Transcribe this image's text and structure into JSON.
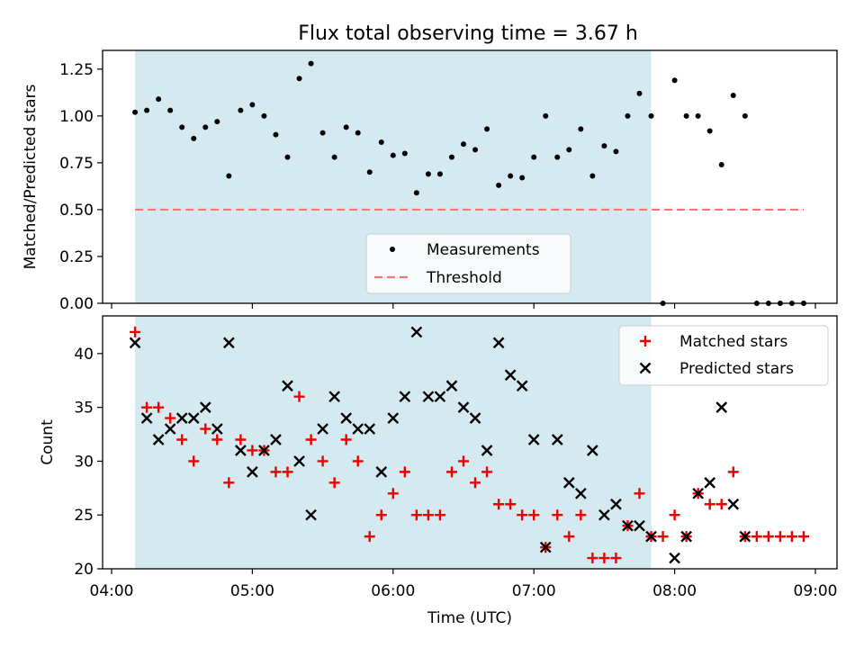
{
  "title": "Flux total observing time = 3.67 h",
  "colors": {
    "shade": "#d4eaf0",
    "threshold": "#f07878",
    "matched": "#ee0000",
    "predicted": "#000000",
    "measurement": "#000000"
  },
  "chart_data": [
    {
      "type": "scatter",
      "ylabel": "Matched/Predicted stars",
      "ylim": [
        0.0,
        1.35
      ],
      "yticks": [
        "0.00",
        "0.25",
        "0.50",
        "0.75",
        "1.00",
        "1.25"
      ],
      "xlim": [
        "04:00",
        "09:00"
      ],
      "shaded_span": [
        "04:10",
        "07:50"
      ],
      "legend": {
        "placement": "lower-center",
        "entries": [
          "Measurements",
          "Threshold"
        ]
      },
      "threshold": {
        "name": "Threshold",
        "y": 0.5,
        "x": [
          "04:10",
          "08:55"
        ]
      },
      "series": [
        {
          "name": "Measurements",
          "points": [
            [
              "04:10",
              1.02
            ],
            [
              "04:15",
              1.03
            ],
            [
              "04:20",
              1.09
            ],
            [
              "04:25",
              1.03
            ],
            [
              "04:30",
              0.94
            ],
            [
              "04:35",
              0.88
            ],
            [
              "04:40",
              0.94
            ],
            [
              "04:45",
              0.97
            ],
            [
              "04:50",
              0.68
            ],
            [
              "04:55",
              1.03
            ],
            [
              "05:00",
              1.06
            ],
            [
              "05:05",
              1.0
            ],
            [
              "05:10",
              0.9
            ],
            [
              "05:15",
              0.78
            ],
            [
              "05:20",
              1.2
            ],
            [
              "05:25",
              1.28
            ],
            [
              "05:30",
              0.91
            ],
            [
              "05:35",
              0.78
            ],
            [
              "05:40",
              0.94
            ],
            [
              "05:45",
              0.91
            ],
            [
              "05:50",
              0.7
            ],
            [
              "05:55",
              0.86
            ],
            [
              "06:00",
              0.79
            ],
            [
              "06:05",
              0.8
            ],
            [
              "06:10",
              0.59
            ],
            [
              "06:15",
              0.69
            ],
            [
              "06:20",
              0.69
            ],
            [
              "06:25",
              0.78
            ],
            [
              "06:30",
              0.85
            ],
            [
              "06:35",
              0.82
            ],
            [
              "06:40",
              0.93
            ],
            [
              "06:45",
              0.63
            ],
            [
              "06:50",
              0.68
            ],
            [
              "06:55",
              0.67
            ],
            [
              "07:00",
              0.78
            ],
            [
              "07:05",
              1.0
            ],
            [
              "07:10",
              0.78
            ],
            [
              "07:15",
              0.82
            ],
            [
              "07:20",
              0.93
            ],
            [
              "07:25",
              0.68
            ],
            [
              "07:30",
              0.84
            ],
            [
              "07:35",
              0.81
            ],
            [
              "07:40",
              1.0
            ],
            [
              "07:45",
              1.12
            ],
            [
              "07:50",
              1.0
            ],
            [
              "07:55",
              0.0
            ],
            [
              "08:00",
              1.19
            ],
            [
              "08:05",
              1.0
            ],
            [
              "08:10",
              1.0
            ],
            [
              "08:15",
              0.92
            ],
            [
              "08:20",
              0.74
            ],
            [
              "08:25",
              1.11
            ],
            [
              "08:30",
              1.0
            ],
            [
              "08:35",
              0.0
            ],
            [
              "08:40",
              0.0
            ],
            [
              "08:45",
              0.0
            ],
            [
              "08:50",
              0.0
            ],
            [
              "08:55",
              0.0
            ]
          ]
        }
      ]
    },
    {
      "type": "scatter",
      "xlabel": "Time (UTC)",
      "ylabel": "Count",
      "ylim": [
        20,
        43.5
      ],
      "yticks": [
        "20",
        "25",
        "30",
        "35",
        "40"
      ],
      "xlim": [
        "04:00",
        "09:00"
      ],
      "xticks": [
        "04:00",
        "05:00",
        "06:00",
        "07:00",
        "08:00",
        "09:00"
      ],
      "shaded_span": [
        "04:10",
        "07:50"
      ],
      "legend": {
        "placement": "upper-right",
        "entries": [
          "Matched stars",
          "Predicted stars"
        ]
      },
      "series": [
        {
          "name": "Matched stars",
          "points": [
            [
              "04:10",
              42
            ],
            [
              "04:15",
              35
            ],
            [
              "04:20",
              35
            ],
            [
              "04:25",
              34
            ],
            [
              "04:30",
              32
            ],
            [
              "04:35",
              30
            ],
            [
              "04:40",
              33
            ],
            [
              "04:45",
              32
            ],
            [
              "04:50",
              28
            ],
            [
              "04:55",
              32
            ],
            [
              "05:00",
              31
            ],
            [
              "05:05",
              31
            ],
            [
              "05:10",
              29
            ],
            [
              "05:15",
              29
            ],
            [
              "05:20",
              36
            ],
            [
              "05:25",
              32
            ],
            [
              "05:30",
              30
            ],
            [
              "05:35",
              28
            ],
            [
              "05:40",
              32
            ],
            [
              "05:45",
              30
            ],
            [
              "05:50",
              23
            ],
            [
              "05:55",
              25
            ],
            [
              "06:00",
              27
            ],
            [
              "06:05",
              29
            ],
            [
              "06:10",
              25
            ],
            [
              "06:15",
              25
            ],
            [
              "06:20",
              25
            ],
            [
              "06:25",
              29
            ],
            [
              "06:30",
              30
            ],
            [
              "06:35",
              28
            ],
            [
              "06:40",
              29
            ],
            [
              "06:45",
              26
            ],
            [
              "06:50",
              26
            ],
            [
              "06:55",
              25
            ],
            [
              "07:00",
              25
            ],
            [
              "07:05",
              22
            ],
            [
              "07:10",
              25
            ],
            [
              "07:15",
              23
            ],
            [
              "07:20",
              25
            ],
            [
              "07:25",
              21
            ],
            [
              "07:30",
              21
            ],
            [
              "07:35",
              21
            ],
            [
              "07:40",
              24
            ],
            [
              "07:45",
              27
            ],
            [
              "07:50",
              23
            ],
            [
              "07:55",
              23
            ],
            [
              "08:00",
              25
            ],
            [
              "08:05",
              23
            ],
            [
              "08:10",
              27
            ],
            [
              "08:15",
              26
            ],
            [
              "08:20",
              26
            ],
            [
              "08:25",
              29
            ],
            [
              "08:30",
              23
            ],
            [
              "08:35",
              23
            ],
            [
              "08:40",
              23
            ],
            [
              "08:45",
              23
            ],
            [
              "08:50",
              23
            ],
            [
              "08:55",
              23
            ]
          ]
        },
        {
          "name": "Predicted stars",
          "points": [
            [
              "04:10",
              41
            ],
            [
              "04:15",
              34
            ],
            [
              "04:20",
              32
            ],
            [
              "04:25",
              33
            ],
            [
              "04:30",
              34
            ],
            [
              "04:35",
              34
            ],
            [
              "04:40",
              35
            ],
            [
              "04:45",
              33
            ],
            [
              "04:50",
              41
            ],
            [
              "04:55",
              31
            ],
            [
              "05:00",
              29
            ],
            [
              "05:05",
              31
            ],
            [
              "05:10",
              32
            ],
            [
              "05:15",
              37
            ],
            [
              "05:20",
              30
            ],
            [
              "05:25",
              25
            ],
            [
              "05:30",
              33
            ],
            [
              "05:35",
              36
            ],
            [
              "05:40",
              34
            ],
            [
              "05:45",
              33
            ],
            [
              "05:50",
              33
            ],
            [
              "05:55",
              29
            ],
            [
              "06:00",
              34
            ],
            [
              "06:05",
              36
            ],
            [
              "06:10",
              42
            ],
            [
              "06:15",
              36
            ],
            [
              "06:20",
              36
            ],
            [
              "06:25",
              37
            ],
            [
              "06:30",
              35
            ],
            [
              "06:35",
              34
            ],
            [
              "06:40",
              31
            ],
            [
              "06:45",
              41
            ],
            [
              "06:50",
              38
            ],
            [
              "06:55",
              37
            ],
            [
              "07:00",
              32
            ],
            [
              "07:05",
              22
            ],
            [
              "07:10",
              32
            ],
            [
              "07:15",
              28
            ],
            [
              "07:20",
              27
            ],
            [
              "07:25",
              31
            ],
            [
              "07:30",
              25
            ],
            [
              "07:35",
              26
            ],
            [
              "07:40",
              24
            ],
            [
              "07:45",
              24
            ],
            [
              "07:50",
              23
            ],
            [
              "08:00",
              21
            ],
            [
              "08:05",
              23
            ],
            [
              "08:10",
              27
            ],
            [
              "08:15",
              28
            ],
            [
              "08:20",
              35
            ],
            [
              "08:25",
              26
            ],
            [
              "08:30",
              23
            ]
          ]
        }
      ]
    }
  ]
}
